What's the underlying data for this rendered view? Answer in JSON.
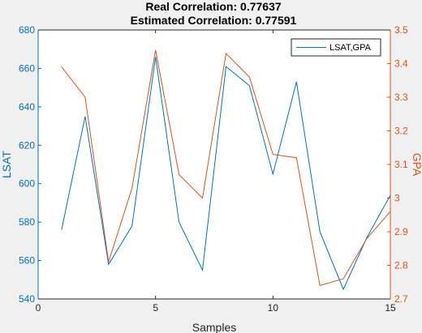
{
  "chart_data": {
    "type": "line",
    "title": [
      "Real Correlation: 0.77637",
      "Estimated Correlation: 0.77591"
    ],
    "xlabel": "Samples",
    "ylabel_left": "LSAT",
    "ylabel_right": "GPA",
    "xlim": [
      0,
      15
    ],
    "ylim_left": [
      540,
      680
    ],
    "ylim_right": [
      2.7,
      3.5
    ],
    "xticks": [
      0,
      5,
      10,
      15
    ],
    "yticks_left": [
      540,
      560,
      580,
      600,
      620,
      640,
      660,
      680
    ],
    "yticks_right": [
      2.7,
      2.8,
      2.9,
      3.0,
      3.1,
      3.2,
      3.3,
      3.4,
      3.5
    ],
    "ytick_labels_right": [
      "2.7",
      "2.8",
      "2.9",
      "3",
      "3.1",
      "3.2",
      "3.3",
      "3.4",
      "3.5"
    ],
    "legend": {
      "label": "LSAT,GPA",
      "position": "top-right"
    },
    "grid": false,
    "colors": {
      "left": "#0072bd",
      "right": "#d95319",
      "axes": "#262626",
      "background": "#f0f0f0",
      "plot_area": "#ffffff"
    },
    "x": [
      1,
      2,
      3,
      4,
      5,
      6,
      7,
      8,
      9,
      10,
      11,
      12,
      13,
      14,
      15
    ],
    "series": [
      {
        "axis": "left",
        "values": [
          576,
          635,
          558,
          578,
          666,
          580,
          555,
          661,
          651,
          605,
          653,
          575,
          545,
          572,
          594
        ]
      },
      {
        "axis": "right",
        "values": [
          3.39,
          3.3,
          2.81,
          3.03,
          3.44,
          3.07,
          3.0,
          3.43,
          3.36,
          3.13,
          3.12,
          2.74,
          2.76,
          2.88,
          2.96
        ]
      }
    ]
  }
}
